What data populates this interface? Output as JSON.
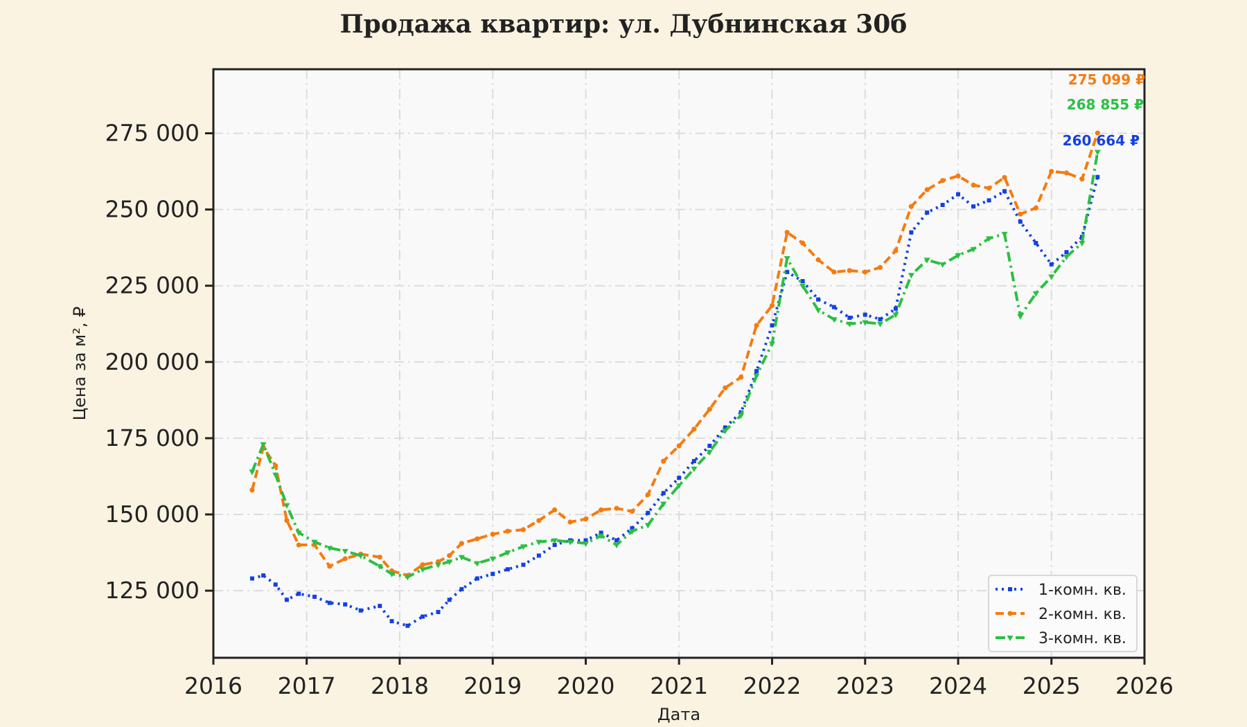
{
  "chart_data": {
    "type": "line",
    "title": "Продажа квартир: ул. Дубнинская 30б",
    "xlabel": "Дата",
    "ylabel": "Цена за м², ₽",
    "xlim": [
      "2016-01-01",
      "2026-01-01"
    ],
    "ylim": [
      103000,
      296000
    ],
    "x_ticks": [
      "2016",
      "2017",
      "2018",
      "2019",
      "2020",
      "2021",
      "2022",
      "2023",
      "2024",
      "2025",
      "2026"
    ],
    "y_ticks": [
      125000,
      150000,
      175000,
      200000,
      225000,
      250000,
      275000
    ],
    "y_tick_labels": [
      "125 000",
      "150 000",
      "175 000",
      "200 000",
      "225 000",
      "250 000",
      "275 000"
    ],
    "grid": true,
    "legend_position": "lower right",
    "background_color": "#f9f9f9",
    "series": [
      {
        "name": "1-комн. кв.",
        "color": "#1341e0",
        "line_style": "dotted",
        "marker": "square",
        "end_label": "260 664 ₽",
        "points": [
          [
            "2016-06-01",
            129000
          ],
          [
            "2016-07-15",
            130000
          ],
          [
            "2016-09-01",
            127000
          ],
          [
            "2016-10-15",
            122000
          ],
          [
            "2016-12-01",
            124000
          ],
          [
            "2017-02-01",
            123000
          ],
          [
            "2017-04-01",
            121000
          ],
          [
            "2017-06-01",
            120500
          ],
          [
            "2017-08-01",
            118500
          ],
          [
            "2017-10-15",
            120000
          ],
          [
            "2017-12-01",
            115000
          ],
          [
            "2018-02-01",
            113500
          ],
          [
            "2018-04-01",
            116500
          ],
          [
            "2018-06-01",
            118000
          ],
          [
            "2018-07-15",
            122000
          ],
          [
            "2018-09-01",
            125500
          ],
          [
            "2018-11-01",
            129000
          ],
          [
            "2019-01-01",
            130500
          ],
          [
            "2019-03-01",
            132000
          ],
          [
            "2019-05-01",
            133500
          ],
          [
            "2019-07-01",
            136500
          ],
          [
            "2019-09-01",
            140000
          ],
          [
            "2019-11-01",
            141500
          ],
          [
            "2020-01-01",
            141500
          ],
          [
            "2020-03-01",
            144000
          ],
          [
            "2020-05-01",
            141500
          ],
          [
            "2020-07-01",
            145500
          ],
          [
            "2020-09-01",
            150500
          ],
          [
            "2020-11-01",
            157000
          ],
          [
            "2021-01-01",
            162000
          ],
          [
            "2021-03-01",
            167500
          ],
          [
            "2021-05-01",
            172500
          ],
          [
            "2021-07-01",
            178500
          ],
          [
            "2021-09-01",
            183500
          ],
          [
            "2021-11-01",
            197000
          ],
          [
            "2022-01-01",
            212000
          ],
          [
            "2022-03-01",
            229500
          ],
          [
            "2022-05-01",
            226500
          ],
          [
            "2022-07-01",
            220500
          ],
          [
            "2022-09-01",
            218000
          ],
          [
            "2022-11-01",
            214500
          ],
          [
            "2023-01-01",
            215500
          ],
          [
            "2023-03-01",
            214000
          ],
          [
            "2023-05-01",
            217500
          ],
          [
            "2023-07-01",
            242500
          ],
          [
            "2023-09-01",
            249000
          ],
          [
            "2023-11-01",
            251500
          ],
          [
            "2024-01-01",
            255000
          ],
          [
            "2024-03-01",
            251000
          ],
          [
            "2024-05-01",
            253000
          ],
          [
            "2024-07-01",
            256000
          ],
          [
            "2024-09-01",
            246000
          ],
          [
            "2024-11-01",
            239000
          ],
          [
            "2025-01-01",
            232000
          ],
          [
            "2025-03-01",
            236000
          ],
          [
            "2025-05-01",
            241000
          ],
          [
            "2025-07-01",
            260664
          ]
        ]
      },
      {
        "name": "2-комн. кв.",
        "color": "#f57b0f",
        "line_style": "dashed",
        "marker": "circle",
        "end_label": "275 099 ₽",
        "points": [
          [
            "2016-06-01",
            158000
          ],
          [
            "2016-07-15",
            172000
          ],
          [
            "2016-09-01",
            166000
          ],
          [
            "2016-10-15",
            148000
          ],
          [
            "2016-12-01",
            140000
          ],
          [
            "2017-02-01",
            140000
          ],
          [
            "2017-04-01",
            133000
          ],
          [
            "2017-06-01",
            135500
          ],
          [
            "2017-08-01",
            137000
          ],
          [
            "2017-10-15",
            136000
          ],
          [
            "2017-12-01",
            131500
          ],
          [
            "2018-02-01",
            130000
          ],
          [
            "2018-04-01",
            133500
          ],
          [
            "2018-06-01",
            134500
          ],
          [
            "2018-07-15",
            136500
          ],
          [
            "2018-09-01",
            140500
          ],
          [
            "2018-11-01",
            142000
          ],
          [
            "2019-01-01",
            143500
          ],
          [
            "2019-03-01",
            144500
          ],
          [
            "2019-05-01",
            145000
          ],
          [
            "2019-07-01",
            148000
          ],
          [
            "2019-09-01",
            151500
          ],
          [
            "2019-11-01",
            147500
          ],
          [
            "2020-01-01",
            148500
          ],
          [
            "2020-03-01",
            151500
          ],
          [
            "2020-05-01",
            152000
          ],
          [
            "2020-07-01",
            151000
          ],
          [
            "2020-09-01",
            156500
          ],
          [
            "2020-11-01",
            167500
          ],
          [
            "2021-01-01",
            172500
          ],
          [
            "2021-03-01",
            178000
          ],
          [
            "2021-05-01",
            184500
          ],
          [
            "2021-07-01",
            191500
          ],
          [
            "2021-09-01",
            195000
          ],
          [
            "2021-11-01",
            212000
          ],
          [
            "2022-01-01",
            218500
          ],
          [
            "2022-03-01",
            242500
          ],
          [
            "2022-05-01",
            239000
          ],
          [
            "2022-07-01",
            233500
          ],
          [
            "2022-09-01",
            229500
          ],
          [
            "2022-11-01",
            230000
          ],
          [
            "2023-01-01",
            229500
          ],
          [
            "2023-03-01",
            231000
          ],
          [
            "2023-05-01",
            236500
          ],
          [
            "2023-07-01",
            251000
          ],
          [
            "2023-09-01",
            256500
          ],
          [
            "2023-11-01",
            259500
          ],
          [
            "2024-01-01",
            261000
          ],
          [
            "2024-03-01",
            258000
          ],
          [
            "2024-05-01",
            257000
          ],
          [
            "2024-07-01",
            260500
          ],
          [
            "2024-09-01",
            248500
          ],
          [
            "2024-11-01",
            250500
          ],
          [
            "2025-01-01",
            262500
          ],
          [
            "2025-03-01",
            262000
          ],
          [
            "2025-05-01",
            260000
          ],
          [
            "2025-07-01",
            275099
          ]
        ]
      },
      {
        "name": "3-комн. кв.",
        "color": "#2bbf42",
        "line_style": "dashdot",
        "marker": "triangle",
        "end_label": "268 855 ₽",
        "points": [
          [
            "2016-06-01",
            164000
          ],
          [
            "2016-07-15",
            173000
          ],
          [
            "2016-09-01",
            163000
          ],
          [
            "2016-10-15",
            153000
          ],
          [
            "2016-12-01",
            144000
          ],
          [
            "2017-02-01",
            141000
          ],
          [
            "2017-04-01",
            139000
          ],
          [
            "2017-06-01",
            138000
          ],
          [
            "2017-08-01",
            136500
          ],
          [
            "2017-10-15",
            133000
          ],
          [
            "2017-12-01",
            130500
          ],
          [
            "2018-02-01",
            129500
          ],
          [
            "2018-04-01",
            132000
          ],
          [
            "2018-06-01",
            133500
          ],
          [
            "2018-07-15",
            134500
          ],
          [
            "2018-09-01",
            136000
          ],
          [
            "2018-11-01",
            134000
          ],
          [
            "2019-01-01",
            135500
          ],
          [
            "2019-03-01",
            137500
          ],
          [
            "2019-05-01",
            139500
          ],
          [
            "2019-07-01",
            141000
          ],
          [
            "2019-09-01",
            141500
          ],
          [
            "2019-11-01",
            141000
          ],
          [
            "2020-01-01",
            140500
          ],
          [
            "2020-03-01",
            143000
          ],
          [
            "2020-05-01",
            140000
          ],
          [
            "2020-07-01",
            144500
          ],
          [
            "2020-09-01",
            146500
          ],
          [
            "2020-11-01",
            153500
          ],
          [
            "2021-01-01",
            159500
          ],
          [
            "2021-03-01",
            165000
          ],
          [
            "2021-05-01",
            170500
          ],
          [
            "2021-07-01",
            177500
          ],
          [
            "2021-09-01",
            182500
          ],
          [
            "2021-11-01",
            195500
          ],
          [
            "2022-01-01",
            206000
          ],
          [
            "2022-03-01",
            234000
          ],
          [
            "2022-05-01",
            225000
          ],
          [
            "2022-07-01",
            217000
          ],
          [
            "2022-09-01",
            214000
          ],
          [
            "2022-11-01",
            212500
          ],
          [
            "2023-01-01",
            213000
          ],
          [
            "2023-03-01",
            212500
          ],
          [
            "2023-05-01",
            215500
          ],
          [
            "2023-07-01",
            228500
          ],
          [
            "2023-09-01",
            233500
          ],
          [
            "2023-11-01",
            232000
          ],
          [
            "2024-01-01",
            235000
          ],
          [
            "2024-03-01",
            237000
          ],
          [
            "2024-05-01",
            240500
          ],
          [
            "2024-07-01",
            242000
          ],
          [
            "2024-09-01",
            215000
          ],
          [
            "2024-11-01",
            222500
          ],
          [
            "2025-01-01",
            228000
          ],
          [
            "2025-03-01",
            234500
          ],
          [
            "2025-05-01",
            239000
          ],
          [
            "2025-07-01",
            268855
          ]
        ]
      }
    ]
  }
}
